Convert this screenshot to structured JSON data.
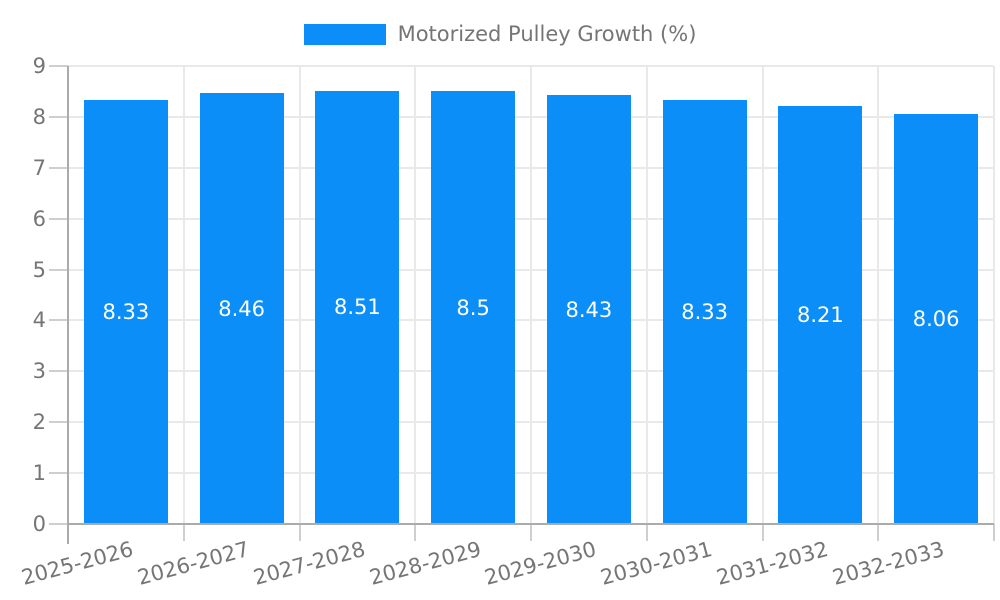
{
  "chart_data": {
    "type": "bar",
    "title": "Motorized Pulley Growth (%)",
    "legend": {
      "position": "top",
      "label": "Motorized Pulley Growth (%)"
    },
    "categories": [
      "2025-2026",
      "2026-2027",
      "2027-2028",
      "2028-2029",
      "2029-2030",
      "2030-2031",
      "2031-2032",
      "2032-2033"
    ],
    "series": [
      {
        "name": "Motorized Pulley Growth (%)",
        "values": [
          8.33,
          8.46,
          8.51,
          8.5,
          8.43,
          8.33,
          8.21,
          8.06
        ],
        "value_labels": [
          "8.33",
          "8.46",
          "8.51",
          "8.5",
          "8.43",
          "8.33",
          "8.21",
          "8.06"
        ]
      }
    ],
    "xlabel": "",
    "ylabel": "",
    "ylim": [
      0,
      9
    ],
    "yticks": [
      "0",
      "1",
      "2",
      "3",
      "4",
      "5",
      "6",
      "7",
      "8",
      "9"
    ],
    "grid": true,
    "value_label_position": "center-of-bar",
    "x_label_rotation_deg": -15,
    "colors": {
      "bar": "#0b8ef8",
      "axis_text": "#757575",
      "value_text": "#ffffff",
      "gridline": "#e9e9e9",
      "tick": "#cfcfcf",
      "axis_line": "#ababab",
      "background": "#ffffff"
    }
  }
}
